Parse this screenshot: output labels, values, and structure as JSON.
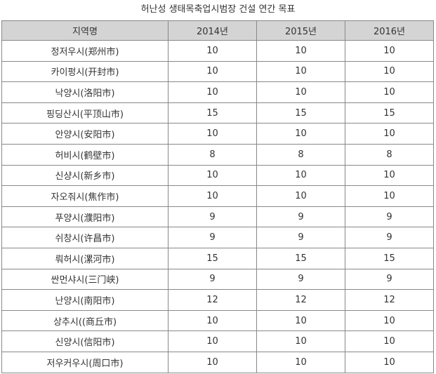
{
  "title": "허난성 생태목축업시범장 건설 연간 목표",
  "table": {
    "header": [
      "지역명",
      "2014년",
      "2015년",
      "2016년"
    ],
    "rows": [
      [
        "정저우시(郑州市)",
        10,
        10,
        10
      ],
      [
        "카이펑시(开封市)",
        10,
        10,
        10
      ],
      [
        "낙양시(洛阳市)",
        10,
        10,
        10
      ],
      [
        "핑딩산시(平顶山市)",
        15,
        15,
        15
      ],
      [
        "안양시(安阳市)",
        10,
        10,
        10
      ],
      [
        "허비시(鹤壁市)",
        8,
        8,
        8
      ],
      [
        "신샹시(新乡市)",
        10,
        10,
        10
      ],
      [
        "자오줘시(焦作市)",
        10,
        10,
        10
      ],
      [
        "푸양시(濮阳市)",
        9,
        9,
        9
      ],
      [
        "쉬창시(许昌市)",
        9,
        9,
        9
      ],
      [
        "뤄허시(漯河市)",
        15,
        15,
        15
      ],
      [
        "싼먼샤시(三门峡)",
        9,
        9,
        9
      ],
      [
        "난양시(南阳市)",
        12,
        12,
        12
      ],
      [
        "상추시((商丘市)",
        10,
        10,
        10
      ],
      [
        "신양시(信阳市)",
        10,
        10,
        10
      ],
      [
        "저우커우시(周口市)",
        10,
        10,
        10
      ]
    ]
  }
}
